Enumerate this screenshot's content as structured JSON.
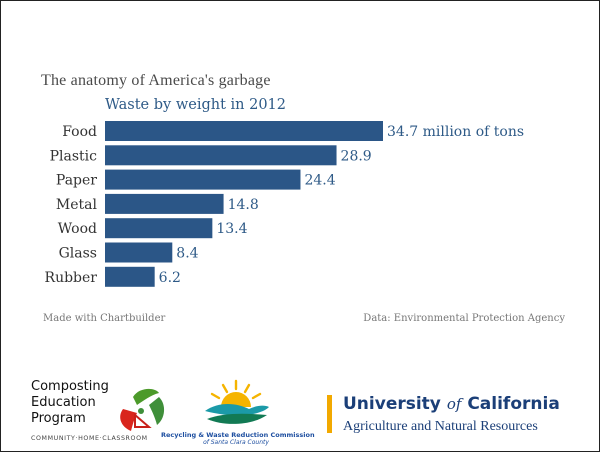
{
  "chart_data": {
    "type": "bar",
    "orientation": "horizontal",
    "title": "The anatomy of America's garbage",
    "subtitle": "Waste by weight in 2012",
    "categories": [
      "Food",
      "Plastic",
      "Paper",
      "Metal",
      "Wood",
      "Glass",
      "Rubber"
    ],
    "values": [
      34.7,
      28.9,
      24.4,
      14.8,
      13.4,
      8.4,
      6.2
    ],
    "value_labels": [
      "34.7 million of tons",
      "28.9",
      "24.4",
      "14.8",
      "13.4",
      "8.4",
      "6.2"
    ],
    "xlim": [
      0,
      34.7
    ],
    "grid": false,
    "legend": "none",
    "bar_color": "#2b5687"
  },
  "footer": {
    "left": "Made with Chartbuilder",
    "right": "Data: Environmental Protection Agency"
  },
  "logos": {
    "compost": {
      "line1": "Composting",
      "line2": "Education",
      "line3": "Program",
      "tagline": "COMMUNITY·HOME·CLASSROOM"
    },
    "recycle": {
      "line1": "Recycling & Waste Reduction Commission",
      "line2": "of Santa Clara County"
    },
    "uc": {
      "name_part1": "University",
      "name_of": "of",
      "name_part2": "California",
      "sub": "Agriculture and Natural Resources"
    }
  }
}
